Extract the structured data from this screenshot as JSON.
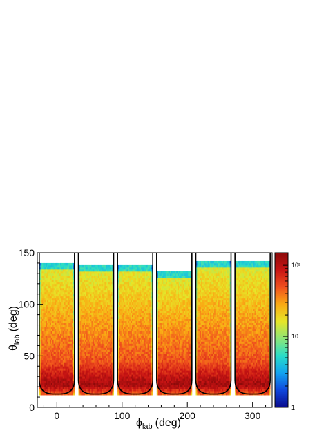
{
  "chart_data": {
    "type": "heatmap",
    "title": "",
    "xlabel": {
      "symbol": "ϕ",
      "subscript": "lab",
      "unit": "(deg)"
    },
    "ylabel": {
      "symbol": "θ",
      "subscript": "lab",
      "unit": "(deg)"
    },
    "xlim": [
      -30,
      330
    ],
    "ylim": [
      0,
      150
    ],
    "x_ticks": [
      0,
      100,
      200,
      300
    ],
    "x_tick_labels": [
      "0",
      "100",
      "200",
      "300"
    ],
    "y_ticks": [
      0,
      50,
      100,
      150
    ],
    "y_tick_labels": [
      "0",
      "50",
      "100",
      "150"
    ],
    "z_scale": "log",
    "z_range": [
      1,
      150
    ],
    "z_ticks": [
      1,
      10,
      100
    ],
    "z_tick_labels": [
      "1",
      "10",
      "10²"
    ],
    "colormap": [
      "#0a0a8c",
      "#0f46dc",
      "#12a2f0",
      "#28dcc8",
      "#8ce678",
      "#e6e628",
      "#faaa14",
      "#f0501e",
      "#c81414",
      "#8c0a0a"
    ],
    "grid": false,
    "bands": [
      {
        "phi_center": 0,
        "phi_min": -27,
        "phi_max": 27,
        "theta_min": 12,
        "theta_max": 140,
        "peak_theta": 22
      },
      {
        "phi_center": 60,
        "phi_min": 33,
        "phi_max": 87,
        "theta_min": 12,
        "theta_max": 138,
        "peak_theta": 22
      },
      {
        "phi_center": 120,
        "phi_min": 93,
        "phi_max": 147,
        "theta_min": 12,
        "theta_max": 138,
        "peak_theta": 22
      },
      {
        "phi_center": 180,
        "phi_min": 153,
        "phi_max": 207,
        "theta_min": 12,
        "theta_max": 131,
        "peak_theta": 22
      },
      {
        "phi_center": 240,
        "phi_min": 213,
        "phi_max": 267,
        "theta_min": 12,
        "theta_max": 142,
        "peak_theta": 22
      },
      {
        "phi_center": 300,
        "phi_min": 273,
        "phi_max": 327,
        "theta_min": 12,
        "theta_max": 141,
        "peak_theta": 22
      }
    ],
    "acceptance_outline": [
      {
        "phi_min": -27,
        "phi_max": 27,
        "theta_min": 13,
        "theta_max": 150
      },
      {
        "phi_min": 33,
        "phi_max": 87,
        "theta_min": 13,
        "theta_max": 150
      },
      {
        "phi_min": 93,
        "phi_max": 147,
        "theta_min": 13,
        "theta_max": 150
      },
      {
        "phi_min": 153,
        "phi_max": 207,
        "theta_min": 13,
        "theta_max": 150
      },
      {
        "phi_min": 213,
        "phi_max": 267,
        "theta_min": 13,
        "theta_max": 150
      },
      {
        "phi_min": 273,
        "phi_max": 327,
        "theta_min": 13,
        "theta_max": 150
      }
    ]
  }
}
